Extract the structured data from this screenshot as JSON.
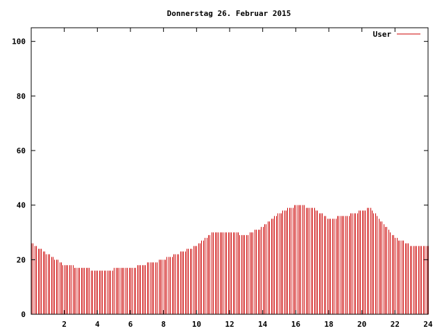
{
  "chart_data": {
    "type": "bar",
    "title": "Donnerstag 26. Februar 2015",
    "xlabel": "",
    "ylabel": "",
    "xlim": [
      0,
      24
    ],
    "ylim": [
      0,
      105
    ],
    "x_ticks": [
      2,
      4,
      6,
      8,
      10,
      12,
      14,
      16,
      18,
      20,
      22,
      24
    ],
    "y_ticks": [
      0,
      20,
      40,
      60,
      80,
      100
    ],
    "grid": false,
    "legend_position": "top-right",
    "series": [
      {
        "name": "User",
        "color": "#cc0000",
        "interval_hours": 0.1,
        "x": [
          0.0,
          2.0,
          4.0,
          6.0,
          8.0,
          10.0,
          11.0,
          12.0,
          13.0,
          14.0,
          15.0,
          16.0,
          17.0,
          18.0,
          19.0,
          20.0,
          20.5,
          21.0,
          22.0,
          23.0,
          24.0
        ],
        "values": [
          26,
          18,
          16,
          17,
          20,
          25,
          30,
          30,
          29,
          32,
          37,
          40,
          39,
          35,
          36,
          38,
          39,
          35,
          28,
          25,
          25
        ]
      }
    ]
  }
}
